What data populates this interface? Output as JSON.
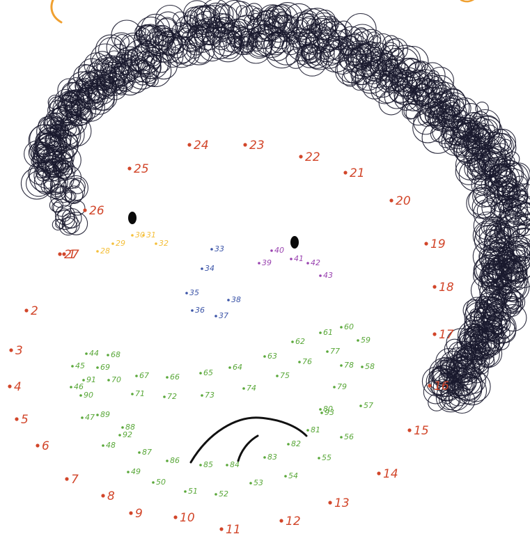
{
  "colors": {
    "background": "#ffffff",
    "hair": "#1a1a2e",
    "outline_red": "#d2462a",
    "eye_yellow": "#f4bf3a",
    "nose_blue": "#3c55a8",
    "eye_purple": "#9a44b0",
    "beard_green": "#5aa83a",
    "corner_orange": "#f0a030",
    "mouth": "#111111"
  },
  "groups": {
    "outline": {
      "color_key": "outline_red",
      "labels": [
        "1",
        "2",
        "3",
        "4",
        "5",
        "6",
        "7",
        "8",
        "9",
        "10",
        "11",
        "12",
        "13",
        "14",
        "15",
        "16",
        "17",
        "18",
        "19",
        "20",
        "21",
        "22",
        "23",
        "24",
        "25",
        "26",
        "27"
      ]
    },
    "left_eye": {
      "color_key": "eye_yellow",
      "labels": [
        "28",
        "29",
        "30",
        "31",
        "32"
      ]
    },
    "nose": {
      "color_key": "nose_blue",
      "labels": [
        "33",
        "34",
        "35",
        "36",
        "37",
        "38"
      ]
    },
    "right_eye": {
      "color_key": "eye_purple",
      "labels": [
        "39",
        "40",
        "41",
        "42",
        "43"
      ]
    },
    "beard": {
      "color_key": "beard_green",
      "labels": [
        "44",
        "45",
        "46",
        "47",
        "48",
        "49",
        "50",
        "51",
        "52",
        "53",
        "54",
        "55",
        "56",
        "57",
        "58",
        "59",
        "60",
        "61",
        "62",
        "63",
        "64",
        "65",
        "66",
        "67",
        "68",
        "69",
        "70",
        "71",
        "72",
        "73",
        "74",
        "75",
        "76",
        "77",
        "78",
        "79",
        "80",
        "81",
        "82",
        "83",
        "84",
        "85",
        "86",
        "87",
        "88",
        "89",
        "90",
        "91",
        "92",
        "93"
      ]
    }
  }
}
